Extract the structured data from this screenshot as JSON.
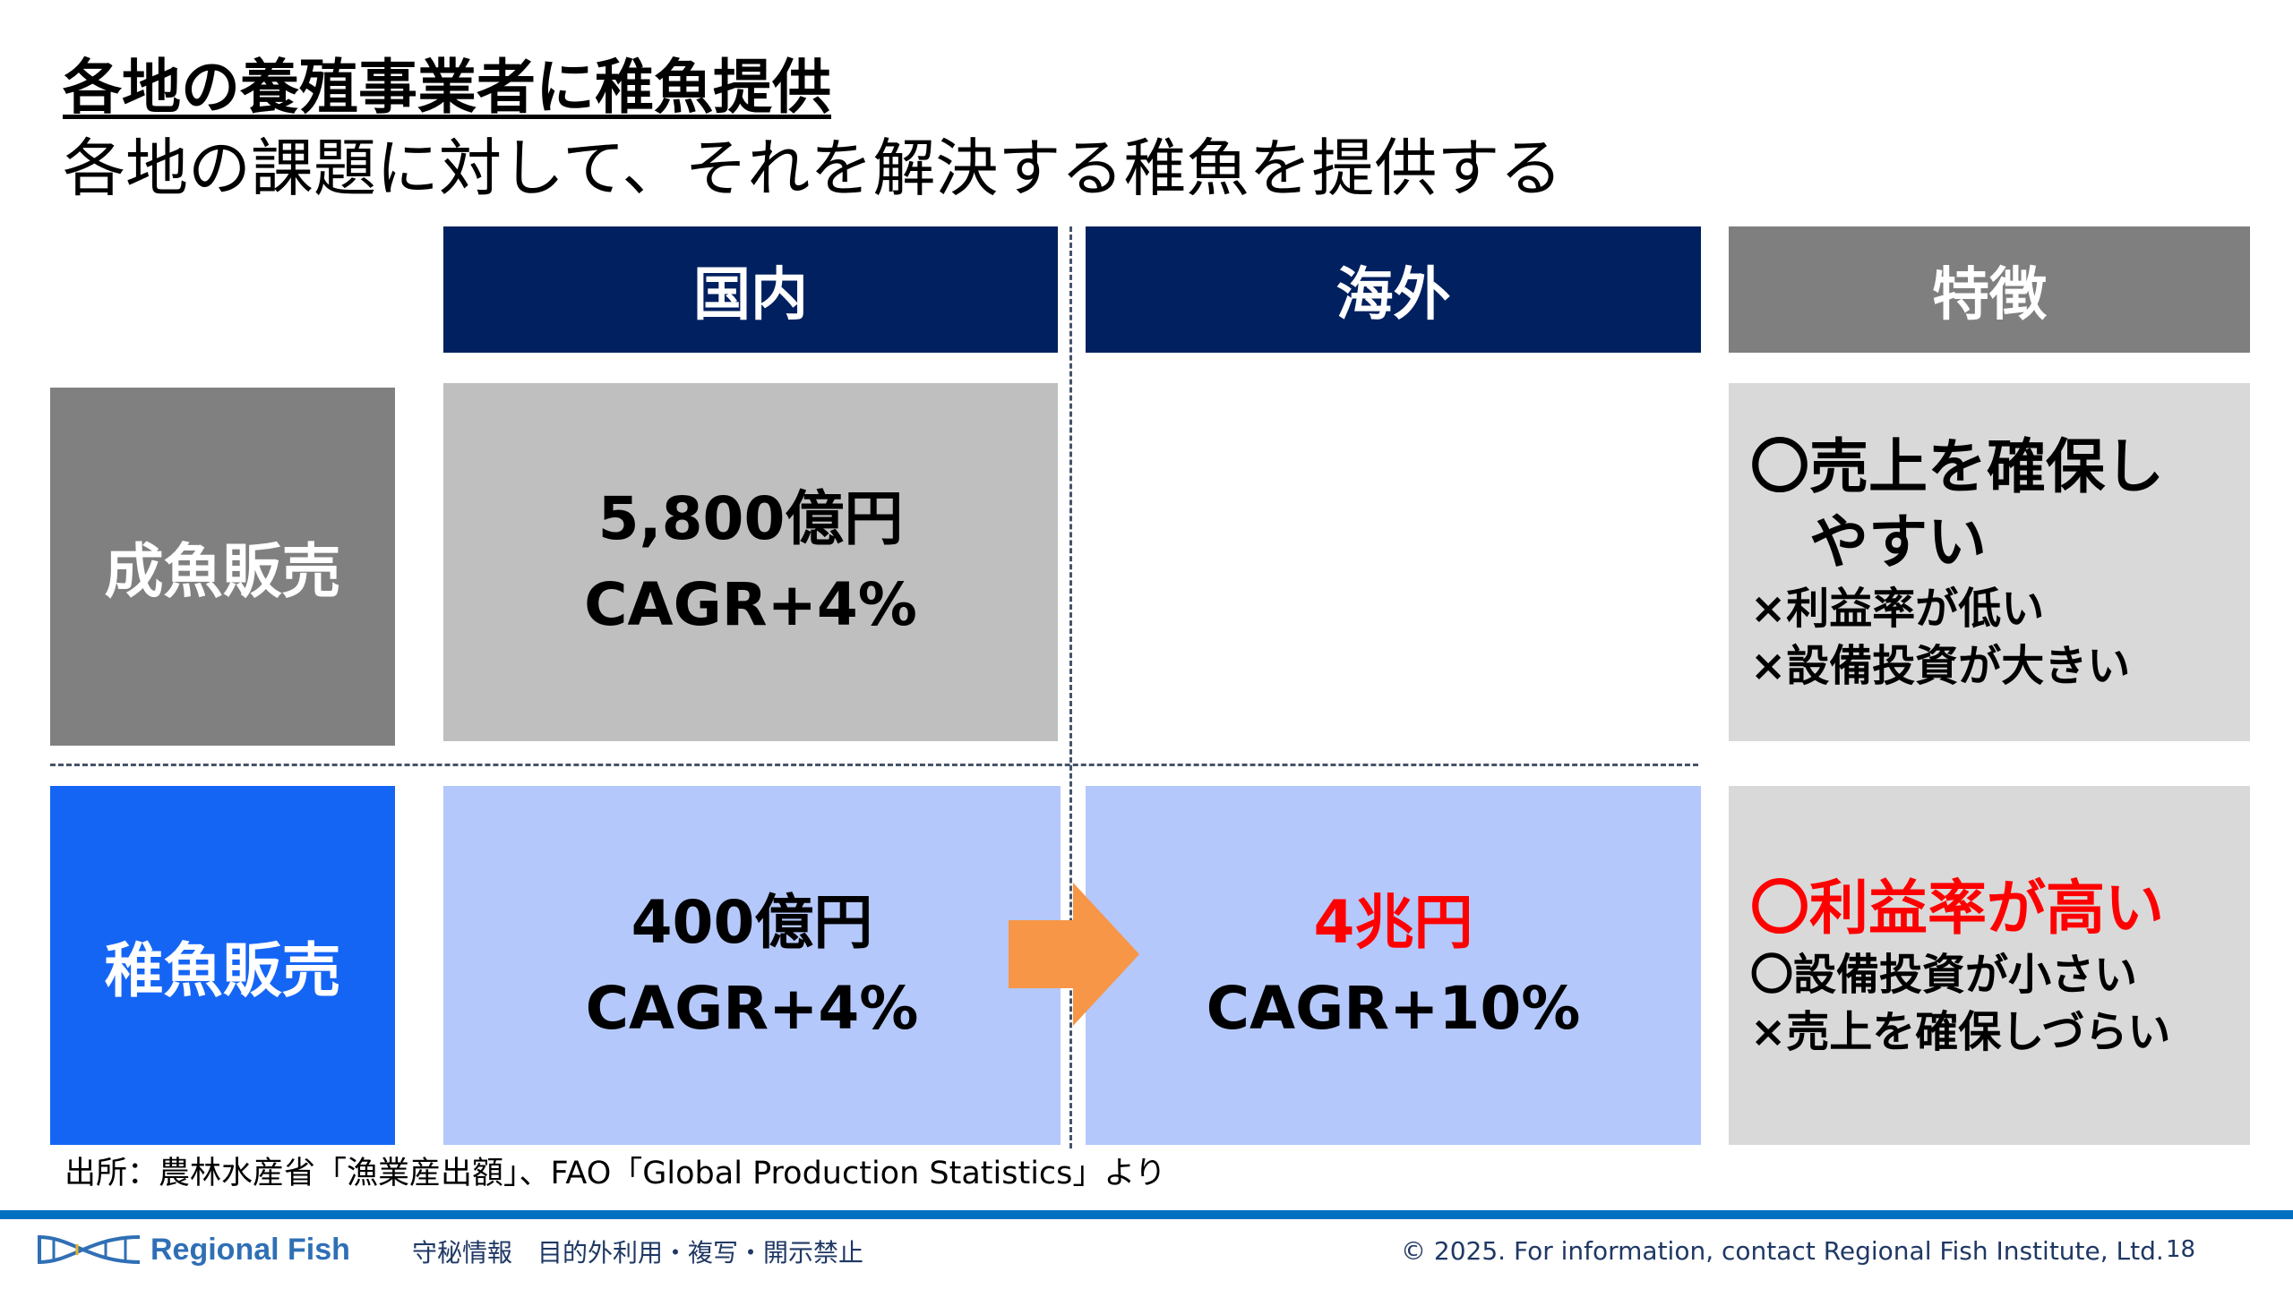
{
  "title": "各地の養殖事業者に稚魚提供",
  "subtitle": "各地の課題に対して、それを解決する稚魚を提供する",
  "headers": {
    "domestic": "国内",
    "overseas": "海外",
    "features": "特徴"
  },
  "rows": [
    {
      "label": "成魚販売",
      "domestic": {
        "amount": "5,800億円",
        "cagr": "CAGR+4%"
      },
      "features": [
        "〇売上を確保し",
        "　やすい",
        "×利益率が低い",
        "×設備投資が大きい"
      ]
    },
    {
      "label": "稚魚販売",
      "domestic": {
        "amount": "400億円",
        "cagr": "CAGR+4%"
      },
      "overseas": {
        "amount": "4兆円",
        "cagr": "CAGR+10%"
      },
      "features": [
        "〇利益率が高い",
        "〇設備投資が小さい",
        "×売上を確保しづらい"
      ]
    }
  ],
  "source": "出所：農林水産省「漁業産出額」、FAO「Global Production Statistics」より",
  "footer": {
    "logo": "Regional Fish",
    "confidential": "守秘情報　目的外利用・複写・開示禁止",
    "copyright": "© 2025. For information, contact Regional Fish Institute, Ltd.",
    "page": "18"
  },
  "colors": {
    "navy": "#002060",
    "blue": "#1565f5",
    "lightblue": "#b4c8fc",
    "orange": "#f79646",
    "red": "#ff0000"
  }
}
